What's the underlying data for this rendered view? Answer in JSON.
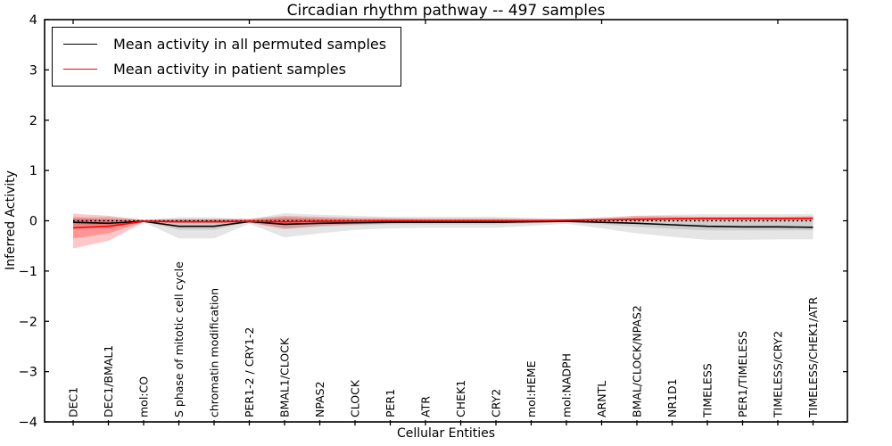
{
  "chart_data": {
    "type": "line",
    "title": "Circadian rhythm pathway -- 497 samples",
    "xlabel": "Cellular Entities",
    "ylabel": "Inferred Activity",
    "ylim": [
      -4,
      4
    ],
    "yticks": [
      4,
      3,
      2,
      1,
      0,
      -1,
      -2,
      -3,
      -4
    ],
    "grid": false,
    "legend_position": "upper left",
    "legend": [
      {
        "label": "Mean activity in all permuted samples",
        "color": "#000000"
      },
      {
        "label": "Mean activity in patient samples",
        "color": "#ff0000"
      }
    ],
    "categories": [
      "DEC1",
      "DEC1/BMAL1",
      "mol:CO",
      "S phase of mitotic cell cycle",
      "chromatin modification",
      "PER1-2 / CRY1-2",
      "BMAL1/CLOCK",
      "NPAS2",
      "CLOCK",
      "PER1",
      "ATR",
      "CHEK1",
      "CRY2",
      "mol:HEME",
      "mol:NADPH",
      "ARNTL",
      "BMAL/CLOCK/NPAS2",
      "NR1D1",
      "TIMELESS",
      "PER1/TIMELESS",
      "TIMELESS/CRY2",
      "TIMELESS/CHEK1/ATR"
    ],
    "series": [
      {
        "name": "Mean activity in all permuted samples",
        "color": "#000000",
        "style": "solid",
        "values": [
          -0.03,
          -0.05,
          -0.01,
          -0.11,
          -0.11,
          -0.015,
          -0.07,
          -0.05,
          -0.04,
          -0.03,
          -0.03,
          -0.03,
          -0.03,
          -0.02,
          -0.01,
          -0.03,
          -0.05,
          -0.08,
          -0.11,
          -0.12,
          -0.12,
          -0.13
        ]
      },
      {
        "name": "Mean activity in patient samples",
        "color": "#ff0000",
        "style": "solid",
        "values": [
          -0.14,
          -0.11,
          -0.01,
          -0.02,
          -0.02,
          -0.01,
          -0.02,
          -0.01,
          -0.01,
          0,
          0,
          0,
          0,
          0,
          0.01,
          0.02,
          0.03,
          0.04,
          0.045,
          0.045,
          0.045,
          0.05
        ]
      }
    ],
    "reference_line": {
      "y": 0,
      "style": "dashed",
      "color": "#000000"
    },
    "bands": [
      {
        "name": "permuted-range-outer",
        "color": "rgba(0,0,0,0.10)",
        "upper": [
          0.08,
          0.08,
          0.02,
          0.07,
          0.07,
          0.03,
          0.15,
          0.12,
          0.1,
          0.08,
          0.08,
          0.08,
          0.08,
          0.06,
          0.04,
          0.07,
          0.1,
          0.12,
          0.13,
          0.13,
          0.13,
          0.13
        ],
        "lower": [
          -0.12,
          -0.15,
          -0.03,
          -0.35,
          -0.35,
          -0.06,
          -0.33,
          -0.25,
          -0.18,
          -0.15,
          -0.14,
          -0.14,
          -0.14,
          -0.1,
          -0.06,
          -0.15,
          -0.25,
          -0.32,
          -0.38,
          -0.38,
          -0.37,
          -0.37
        ]
      },
      {
        "name": "permuted-range-inner",
        "color": "rgba(0,0,0,0.10)",
        "upper": [
          0.04,
          0.04,
          0.01,
          0.03,
          0.03,
          0.015,
          0.07,
          0.05,
          0.04,
          0.04,
          0.04,
          0.04,
          0.04,
          0.03,
          0.02,
          0.03,
          0.05,
          0.06,
          0.06,
          0.06,
          0.06,
          0.06
        ],
        "lower": [
          -0.07,
          -0.08,
          -0.015,
          -0.18,
          -0.18,
          -0.03,
          -0.16,
          -0.12,
          -0.09,
          -0.07,
          -0.07,
          -0.07,
          -0.07,
          -0.05,
          -0.03,
          -0.07,
          -0.12,
          -0.16,
          -0.19,
          -0.19,
          -0.19,
          -0.19
        ]
      },
      {
        "name": "patient-range-outer",
        "color": "rgba(255,0,0,0.22)",
        "upper": [
          0.14,
          0.1,
          0.02,
          0.03,
          0.03,
          0.04,
          0.1,
          0.08,
          0.06,
          0.05,
          0.04,
          0.04,
          0.04,
          0.03,
          0.03,
          0.05,
          0.1,
          0.09,
          0.08,
          0.08,
          0.08,
          0.09
        ],
        "lower": [
          -0.55,
          -0.4,
          -0.03,
          -0.05,
          -0.05,
          -0.04,
          -0.16,
          -0.1,
          -0.07,
          -0.05,
          -0.04,
          -0.04,
          -0.03,
          -0.02,
          -0.01,
          0,
          0,
          0.01,
          0.01,
          0.01,
          0.01,
          0.01
        ]
      },
      {
        "name": "patient-range-inner",
        "color": "rgba(255,0,0,0.25)",
        "upper": [
          0.05,
          0.03,
          0.01,
          0.02,
          0.02,
          0.02,
          0.05,
          0.04,
          0.03,
          0.03,
          0.02,
          0.02,
          0.02,
          0.02,
          0.02,
          0.03,
          0.06,
          0.06,
          0.06,
          0.06,
          0.06,
          0.06
        ],
        "lower": [
          -0.35,
          -0.25,
          -0.02,
          -0.03,
          -0.03,
          -0.02,
          -0.09,
          -0.06,
          -0.04,
          -0.03,
          -0.02,
          -0.02,
          -0.02,
          -0.01,
          0,
          0,
          0.01,
          0.02,
          0.02,
          0.02,
          0.02,
          0.02
        ]
      }
    ]
  }
}
